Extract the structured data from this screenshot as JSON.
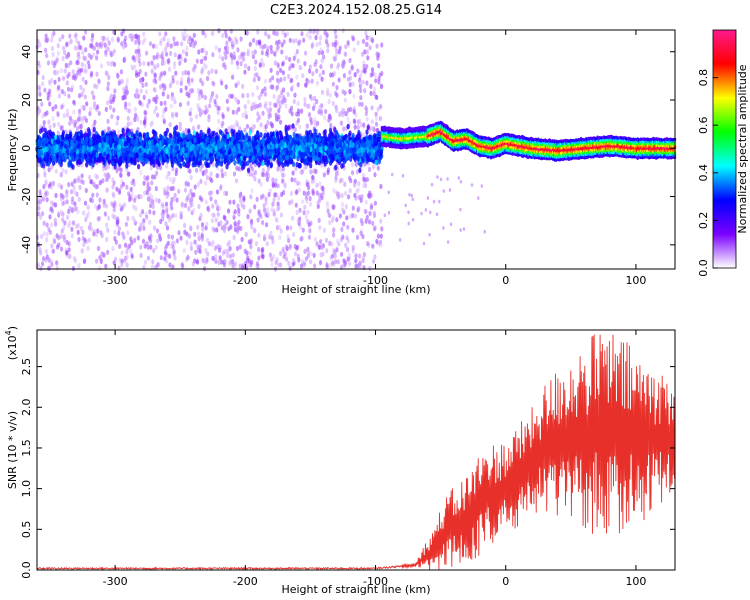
{
  "title": "C2E3.2024.152.08.25.G14",
  "chart_data": [
    {
      "type": "heatmap",
      "xlabel": "Height of straight line (km)",
      "ylabel": "Frequency (Hz)",
      "xlim": [
        -360,
        130
      ],
      "ylim": [
        -50,
        49
      ],
      "xticks": [
        -300,
        -200,
        -100,
        0,
        100
      ],
      "yticks": [
        -40,
        -20,
        0,
        20,
        40
      ],
      "colorbar": {
        "label": "Normalized spectral amplitude",
        "range": [
          0,
          1
        ],
        "ticks": [
          "0.0",
          "0.2",
          "0.4",
          "0.6",
          "0.8"
        ],
        "tick_values": [
          0,
          0.2,
          0.4,
          0.6,
          0.8
        ],
        "colors": [
          "#ffffff",
          "#7a00ff",
          "#0000ff",
          "#00ffff",
          "#00ff00",
          "#ffff00",
          "#ff0000",
          "#ff1a8c"
        ]
      },
      "regions": [
        {
          "x_range": [
            -360,
            -95
          ],
          "center_freq": 0,
          "core_halfwidth": 10,
          "spread": 50,
          "amplitude": 0.3
        },
        {
          "x_range": [
            -95,
            130
          ],
          "center_freq_trace": [
            [
              -95,
              5
            ],
            [
              -80,
              4
            ],
            [
              -60,
              5
            ],
            [
              -50,
              7
            ],
            [
              -40,
              3
            ],
            [
              -30,
              4
            ],
            [
              -20,
              1
            ],
            [
              -10,
              0
            ],
            [
              0,
              2
            ],
            [
              20,
              0
            ],
            [
              40,
              -1
            ],
            [
              60,
              0
            ],
            [
              80,
              1
            ],
            [
              100,
              0
            ],
            [
              130,
              0
            ]
          ],
          "core_halfwidth": 3,
          "amplitude": 0.8
        }
      ]
    },
    {
      "type": "line",
      "xlabel": "Height of straight line (km)",
      "ylabel": "SNR (10 * v/v)",
      "multiplier_label": "(x10",
      "multiplier_exp": "4",
      "multiplier_close": ")",
      "xlim": [
        -360,
        130
      ],
      "ylim": [
        0,
        2.95
      ],
      "xticks": [
        -300,
        -200,
        -100,
        0,
        100
      ],
      "yticks": [
        "0.0",
        "0.5",
        "1.0",
        "1.5",
        "2.0",
        "2.5"
      ],
      "ytick_values": [
        0,
        0.5,
        1.0,
        1.5,
        2.0,
        2.5
      ],
      "series": [
        {
          "color": "#e8302a",
          "envelope": [
            [
              -360,
              0.02
            ],
            [
              -100,
              0.02
            ],
            [
              -70,
              0.06
            ],
            [
              -55,
              0.25
            ],
            [
              -45,
              0.5
            ],
            [
              -35,
              0.55
            ],
            [
              -25,
              0.7
            ],
            [
              -15,
              0.9
            ],
            [
              0,
              1.0
            ],
            [
              15,
              1.25
            ],
            [
              30,
              1.5
            ],
            [
              45,
              1.6
            ],
            [
              60,
              1.65
            ],
            [
              75,
              1.7
            ],
            [
              90,
              1.65
            ],
            [
              110,
              1.6
            ],
            [
              130,
              1.65
            ]
          ],
          "amplitude_envelope": [
            [
              -360,
              0.01
            ],
            [
              -70,
              0.02
            ],
            [
              -50,
              0.35
            ],
            [
              -40,
              0.45
            ],
            [
              -20,
              0.6
            ],
            [
              0,
              0.55
            ],
            [
              20,
              0.6
            ],
            [
              40,
              0.85
            ],
            [
              60,
              1.05
            ],
            [
              75,
              1.2
            ],
            [
              90,
              1.1
            ],
            [
              110,
              0.9
            ],
            [
              130,
              0.6
            ]
          ]
        }
      ]
    }
  ]
}
